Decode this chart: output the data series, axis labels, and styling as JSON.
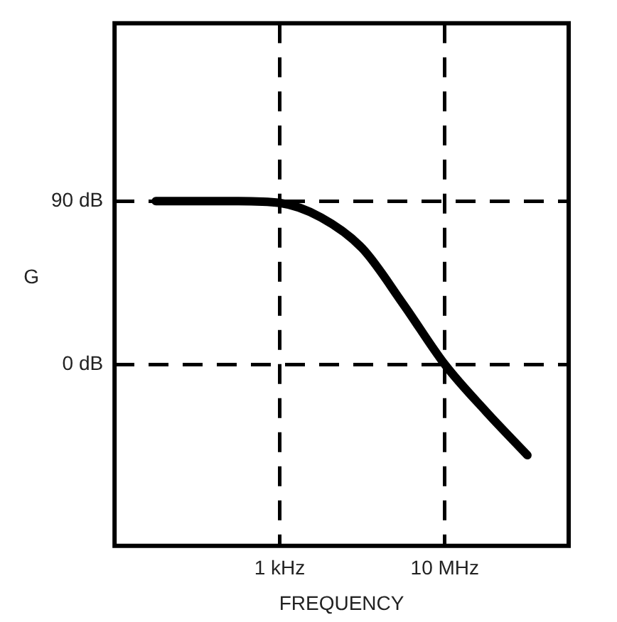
{
  "chart_data": {
    "type": "line",
    "xlabel": "FREQUENCY",
    "ylabel": "G",
    "categories": [
      null,
      null,
      null,
      null,
      "1 kHz",
      null,
      null,
      null,
      "10 MHz",
      null,
      null,
      null
    ],
    "series": [
      {
        "color": "#000000",
        "values": [
          null,
          90,
          90,
          90,
          89,
          81,
          64,
          33,
          0,
          -26,
          -50,
          null
        ]
      }
    ],
    "ylim": [
      -100,
      188
    ],
    "yticks": [
      {
        "value": 0,
        "label": "0 dB"
      },
      {
        "value": 90,
        "label": "90 dB"
      }
    ],
    "grid": true,
    "legend": false,
    "marker": "none",
    "line_style": "solid"
  }
}
